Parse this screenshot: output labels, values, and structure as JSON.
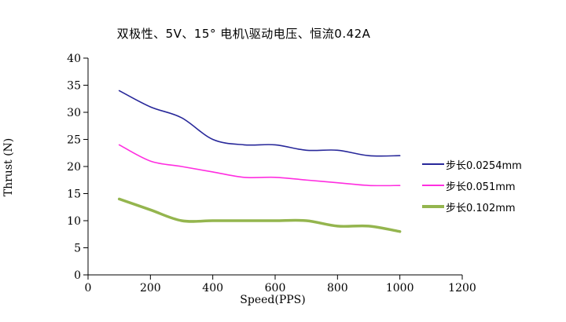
{
  "window": {
    "background": "#ffffff",
    "text_color": "#000000",
    "axis_color": "#000000"
  },
  "chart_data": {
    "type": "line",
    "title": "双极性、5V、15° 电机\\驱动电压、恒流0.42A",
    "xlabel": "Speed(PPS)",
    "ylabel": "Thrust (N)",
    "x": [
      100,
      200,
      300,
      400,
      500,
      600,
      700,
      800,
      900,
      1000
    ],
    "xlim": [
      0,
      1200
    ],
    "ylim": [
      0,
      40
    ],
    "xticks": [
      0,
      200,
      400,
      600,
      800,
      1000,
      1200
    ],
    "yticks": [
      0,
      5,
      10,
      15,
      20,
      25,
      30,
      35,
      40
    ],
    "grid": false,
    "legend_position": "right",
    "series": [
      {
        "name": "步长0.0254mm",
        "color": "#28289a",
        "line_width": 1.6,
        "values": [
          34,
          31,
          29,
          25,
          24,
          24,
          23,
          23,
          22,
          22
        ]
      },
      {
        "name": "步长0.051mm",
        "color": "#ff2ee0",
        "line_width": 1.6,
        "values": [
          24,
          21,
          20,
          19,
          18,
          18,
          17.5,
          17,
          16.5,
          16.5
        ]
      },
      {
        "name": "步长0.102mm",
        "color": "#94b54e",
        "line_width": 3.5,
        "values": [
          14,
          12,
          10,
          10,
          10,
          10,
          10,
          9,
          9,
          8
        ]
      }
    ]
  }
}
